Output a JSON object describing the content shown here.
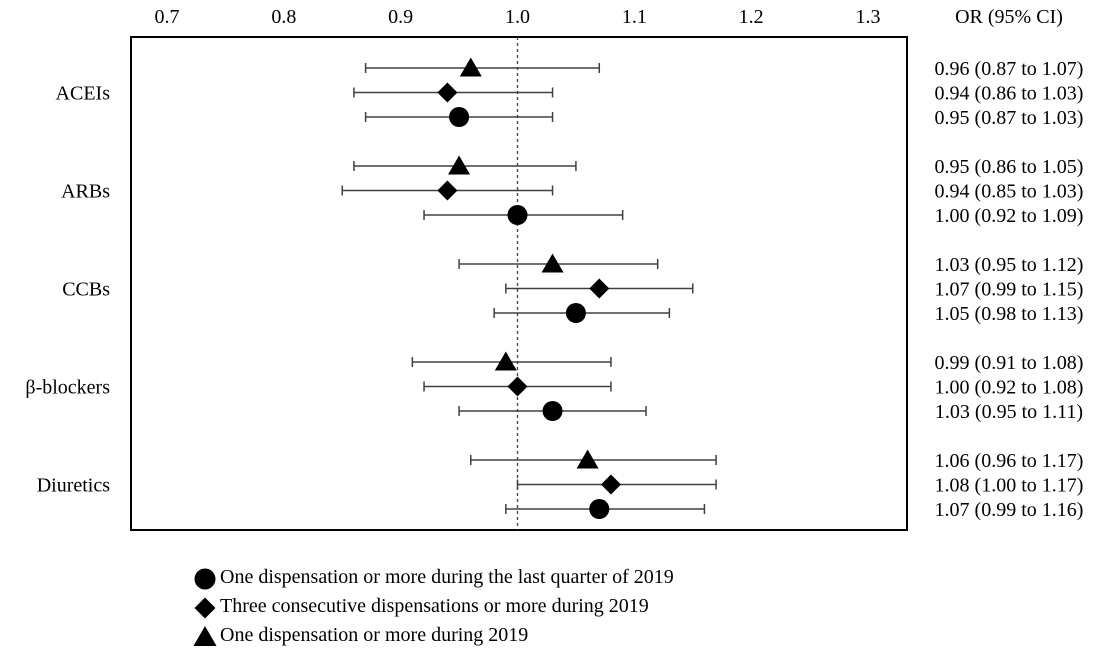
{
  "chart_data": {
    "type": "forest",
    "x_ticks": [
      0.7,
      0.8,
      0.9,
      1.0,
      1.1,
      1.2,
      1.3
    ],
    "x_tick_labels": [
      "0.7",
      "0.8",
      "0.9",
      "1.0",
      "1.1",
      "1.2",
      "1.3"
    ],
    "xlim": [
      0.7,
      1.3
    ],
    "reference_line": 1.0,
    "ci_header": "OR (95% CI)",
    "legend_position": "bottom",
    "series": [
      {
        "name": "One dispensation or more during 2019",
        "marker": "triangle"
      },
      {
        "name": "Three consecutive dispensations or more during 2019",
        "marker": "diamond"
      },
      {
        "name": "One dispensation or more during the last quarter of 2019",
        "marker": "circle"
      }
    ],
    "legend_order": [
      2,
      1,
      0
    ],
    "groups": [
      {
        "label": "ACEIs",
        "rows": [
          {
            "series": 0,
            "or": 0.96,
            "lo": 0.87,
            "hi": 1.07,
            "text": "0.96 (0.87 to 1.07)"
          },
          {
            "series": 1,
            "or": 0.94,
            "lo": 0.86,
            "hi": 1.03,
            "text": "0.94 (0.86 to 1.03)"
          },
          {
            "series": 2,
            "or": 0.95,
            "lo": 0.87,
            "hi": 1.03,
            "text": "0.95 (0.87 to 1.03)"
          }
        ]
      },
      {
        "label": "ARBs",
        "rows": [
          {
            "series": 0,
            "or": 0.95,
            "lo": 0.86,
            "hi": 1.05,
            "text": "0.95 (0.86 to 1.05)"
          },
          {
            "series": 1,
            "or": 0.94,
            "lo": 0.85,
            "hi": 1.03,
            "text": "0.94 (0.85 to 1.03)"
          },
          {
            "series": 2,
            "or": 1.0,
            "lo": 0.92,
            "hi": 1.09,
            "text": "1.00 (0.92 to 1.09)"
          }
        ]
      },
      {
        "label": "CCBs",
        "rows": [
          {
            "series": 0,
            "or": 1.03,
            "lo": 0.95,
            "hi": 1.12,
            "text": "1.03 (0.95 to 1.12)"
          },
          {
            "series": 1,
            "or": 1.07,
            "lo": 0.99,
            "hi": 1.15,
            "text": "1.07 (0.99 to 1.15)"
          },
          {
            "series": 2,
            "or": 1.05,
            "lo": 0.98,
            "hi": 1.13,
            "text": "1.05 (0.98 to 1.13)"
          }
        ]
      },
      {
        "label": "β-blockers",
        "rows": [
          {
            "series": 0,
            "or": 0.99,
            "lo": 0.91,
            "hi": 1.08,
            "text": "0.99 (0.91 to 1.08)"
          },
          {
            "series": 1,
            "or": 1.0,
            "lo": 0.92,
            "hi": 1.08,
            "text": "1.00 (0.92 to 1.08)"
          },
          {
            "series": 2,
            "or": 1.03,
            "lo": 0.95,
            "hi": 1.11,
            "text": "1.03 (0.95 to 1.11)"
          }
        ]
      },
      {
        "label": "Diuretics",
        "rows": [
          {
            "series": 0,
            "or": 1.06,
            "lo": 0.96,
            "hi": 1.17,
            "text": "1.06 (0.96 to 1.17)"
          },
          {
            "series": 1,
            "or": 1.08,
            "lo": 1.0,
            "hi": 1.17,
            "text": "1.08 (1.00 to 1.17)"
          },
          {
            "series": 2,
            "or": 1.07,
            "lo": 0.99,
            "hi": 1.16,
            "text": "1.07 (0.99 to 1.16)"
          }
        ]
      }
    ]
  },
  "colors": {
    "marker": "#000000",
    "whisker": "#404040",
    "frame": "#000000",
    "reference_line": "#404040"
  }
}
